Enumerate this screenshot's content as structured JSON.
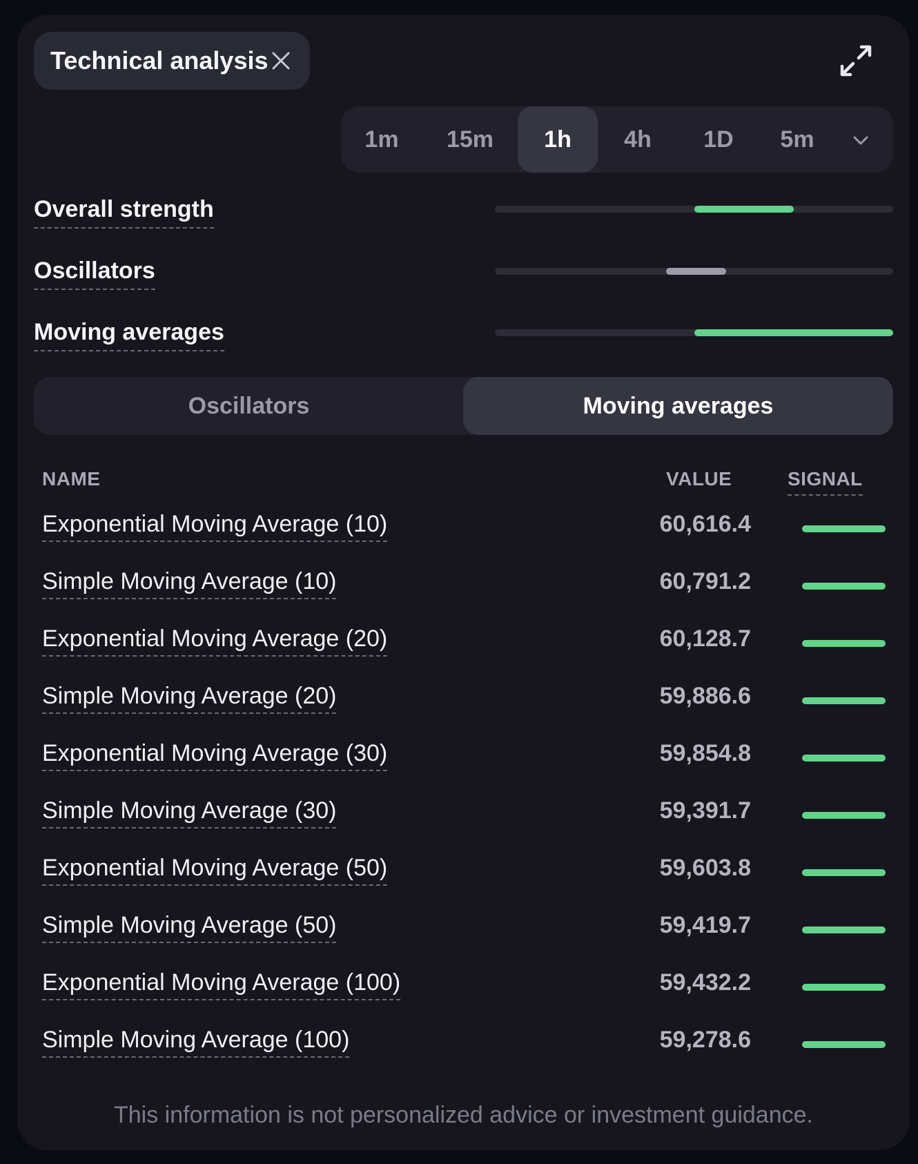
{
  "header": {
    "chip_label": "Technical analysis",
    "close_icon": "close-icon",
    "expand_icon": "expand-icon"
  },
  "timeframes": {
    "items": [
      "1m",
      "15m",
      "1h",
      "4h",
      "1D",
      "5m"
    ],
    "selected": "1h",
    "dropdown_icon": "chevron-down-icon"
  },
  "strength": {
    "overall_label": "Overall strength",
    "oscillators_label": "Oscillators",
    "moving_averages_label": "Moving averages",
    "overall_level": {
      "from": 0.5,
      "to": 0.75,
      "status": "buy"
    },
    "oscillators_level": {
      "from": 0.43,
      "to": 0.58,
      "status": "neutral"
    },
    "moving_averages_level": {
      "from": 0.5,
      "to": 1.0,
      "status": "strong-buy"
    }
  },
  "tabs": {
    "oscillators": "Oscillators",
    "moving_averages": "Moving averages",
    "selected": "Moving averages"
  },
  "table": {
    "headers": {
      "name": "NAME",
      "value": "VALUE",
      "signal": "SIGNAL"
    },
    "rows": [
      {
        "name": "Exponential Moving Average (10)",
        "value": "60,616.4",
        "signal": "buy"
      },
      {
        "name": "Simple Moving Average (10)",
        "value": "60,791.2",
        "signal": "buy"
      },
      {
        "name": "Exponential Moving Average (20)",
        "value": "60,128.7",
        "signal": "buy"
      },
      {
        "name": "Simple Moving Average (20)",
        "value": "59,886.6",
        "signal": "buy"
      },
      {
        "name": "Exponential Moving Average (30)",
        "value": "59,854.8",
        "signal": "buy"
      },
      {
        "name": "Simple Moving Average (30)",
        "value": "59,391.7",
        "signal": "buy"
      },
      {
        "name": "Exponential Moving Average (50)",
        "value": "59,603.8",
        "signal": "buy"
      },
      {
        "name": "Simple Moving Average (50)",
        "value": "59,419.7",
        "signal": "buy"
      },
      {
        "name": "Exponential Moving Average (100)",
        "value": "59,432.2",
        "signal": "buy"
      },
      {
        "name": "Simple Moving Average (100)",
        "value": "59,278.6",
        "signal": "buy"
      }
    ]
  },
  "disclaimer": "This information is not personalized advice or investment guidance.",
  "colors": {
    "buy": "#62d48a",
    "neutral": "#9d9ca8",
    "track": "#2c2b36",
    "background": "#17161f"
  }
}
